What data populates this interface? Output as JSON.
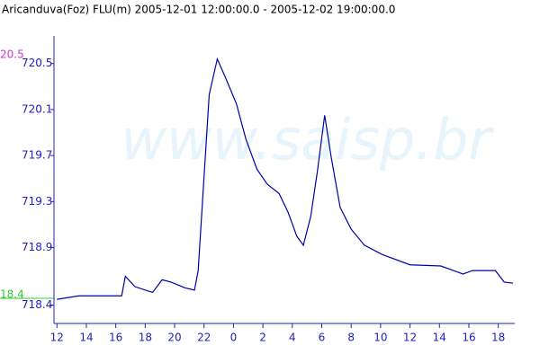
{
  "chart_data": {
    "type": "line",
    "title": "Aricanduva(Foz) FLU(m) 2005-12-01 12:00:00.0 - 2005-12-02 19:00:00.0",
    "watermark": "www.saisp.br",
    "annotations": [
      {
        "text": "20.5",
        "color": "#cc33cc"
      },
      {
        "text": "18.4",
        "color": "#33cc33"
      }
    ],
    "series": [
      {
        "color": "#0000aa",
        "x": [
          0,
          1.5,
          4.4,
          4.65,
          5.3,
          6.5,
          7.15,
          7.75,
          8.7,
          9.35,
          9.6,
          10.35,
          10.9,
          11.45,
          12.2,
          12.85,
          13.6,
          14.3,
          15.1,
          15.7,
          16.3,
          16.75,
          17.25,
          17.7,
          18.2,
          18.65,
          19.25,
          20.0,
          20.9,
          22.1,
          24.0,
          26.1,
          27.6,
          28.25,
          29.8,
          30.4,
          31
        ],
        "values": [
          718.45,
          718.48,
          718.48,
          718.65,
          718.56,
          718.51,
          718.62,
          718.6,
          718.55,
          718.53,
          718.7,
          720.23,
          720.54,
          720.38,
          720.15,
          719.84,
          719.58,
          719.45,
          719.37,
          719.21,
          719.0,
          718.92,
          719.17,
          719.56,
          720.05,
          719.68,
          719.25,
          719.06,
          718.92,
          718.84,
          718.75,
          718.74,
          718.67,
          718.7,
          718.7,
          718.6,
          718.59
        ]
      }
    ],
    "xlim": [
      -0.2,
      31
    ],
    "xticks": [
      {
        "value": 0,
        "label": "12"
      },
      {
        "value": 2,
        "label": "14"
      },
      {
        "value": 4,
        "label": "16"
      },
      {
        "value": 6,
        "label": "18"
      },
      {
        "value": 8,
        "label": "20"
      },
      {
        "value": 10,
        "label": "22"
      },
      {
        "value": 12,
        "label": "0"
      },
      {
        "value": 14,
        "label": "2"
      },
      {
        "value": 16,
        "label": "4"
      },
      {
        "value": 18,
        "label": "6"
      },
      {
        "value": 20,
        "label": "8"
      },
      {
        "value": 22,
        "label": "10"
      },
      {
        "value": 24,
        "label": "12"
      },
      {
        "value": 26,
        "label": "14"
      },
      {
        "value": 28,
        "label": "16"
      },
      {
        "value": 30,
        "label": "18"
      }
    ],
    "ylim": [
      718.24,
      720.74
    ],
    "yticks": [
      718.4,
      718.9,
      719.3,
      719.7,
      720.1,
      720.5
    ]
  }
}
